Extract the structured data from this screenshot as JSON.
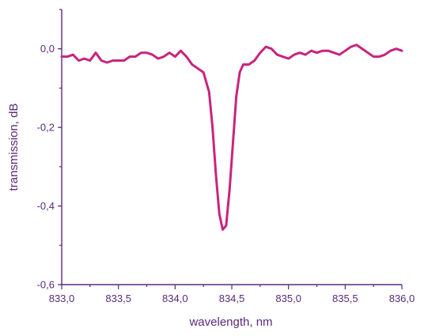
{
  "chart_data": {
    "type": "line",
    "title": "",
    "xlabel": "wavelength, nm",
    "ylabel": "transmission, dB",
    "xlim": [
      833.0,
      836.0
    ],
    "ylim": [
      -0.6,
      0.1
    ],
    "x_ticks": [
      833.0,
      833.5,
      834.0,
      834.5,
      835.0,
      835.5,
      836.0
    ],
    "x_tick_labels": [
      "833,0",
      "833,5",
      "834,0",
      "834,5",
      "835,0",
      "835,5",
      "836,0"
    ],
    "y_ticks": [
      0.0,
      -0.2,
      -0.4,
      -0.6
    ],
    "y_tick_labels": [
      "0,0",
      "-0,2",
      "-0,4",
      "-0,6"
    ],
    "grid": false,
    "line_color": "#c8247e",
    "axis_color": "#5a2a7a",
    "series": [
      {
        "x": [
          833.0,
          833.05,
          833.1,
          833.15,
          833.2,
          833.25,
          833.3,
          833.35,
          833.4,
          833.45,
          833.5,
          833.55,
          833.6,
          833.65,
          833.7,
          833.75,
          833.8,
          833.85,
          833.9,
          833.95,
          834.0,
          834.05,
          834.1,
          834.15,
          834.2,
          834.25,
          834.3,
          834.33,
          834.36,
          834.39,
          834.42,
          834.45,
          834.48,
          834.51,
          834.54,
          834.57,
          834.6,
          834.65,
          834.7,
          834.75,
          834.8,
          834.85,
          834.9,
          834.95,
          835.0,
          835.05,
          835.1,
          835.15,
          835.2,
          835.25,
          835.3,
          835.35,
          835.4,
          835.45,
          835.5,
          835.55,
          835.6,
          835.65,
          835.7,
          835.75,
          835.8,
          835.85,
          835.9,
          835.95,
          836.0
        ],
        "values": [
          -0.02,
          -0.02,
          -0.015,
          -0.03,
          -0.025,
          -0.03,
          -0.01,
          -0.03,
          -0.035,
          -0.03,
          -0.03,
          -0.03,
          -0.02,
          -0.02,
          -0.01,
          -0.01,
          -0.015,
          -0.025,
          -0.02,
          -0.01,
          -0.02,
          -0.005,
          -0.02,
          -0.04,
          -0.05,
          -0.06,
          -0.11,
          -0.2,
          -0.32,
          -0.42,
          -0.46,
          -0.45,
          -0.36,
          -0.24,
          -0.12,
          -0.06,
          -0.04,
          -0.04,
          -0.03,
          -0.01,
          0.005,
          0.0,
          -0.015,
          -0.02,
          -0.025,
          -0.015,
          -0.01,
          -0.015,
          -0.005,
          -0.01,
          -0.005,
          -0.005,
          -0.01,
          -0.015,
          -0.005,
          0.005,
          0.01,
          0.0,
          -0.01,
          -0.02,
          -0.02,
          -0.015,
          -0.005,
          0.0,
          -0.005
        ]
      }
    ]
  }
}
